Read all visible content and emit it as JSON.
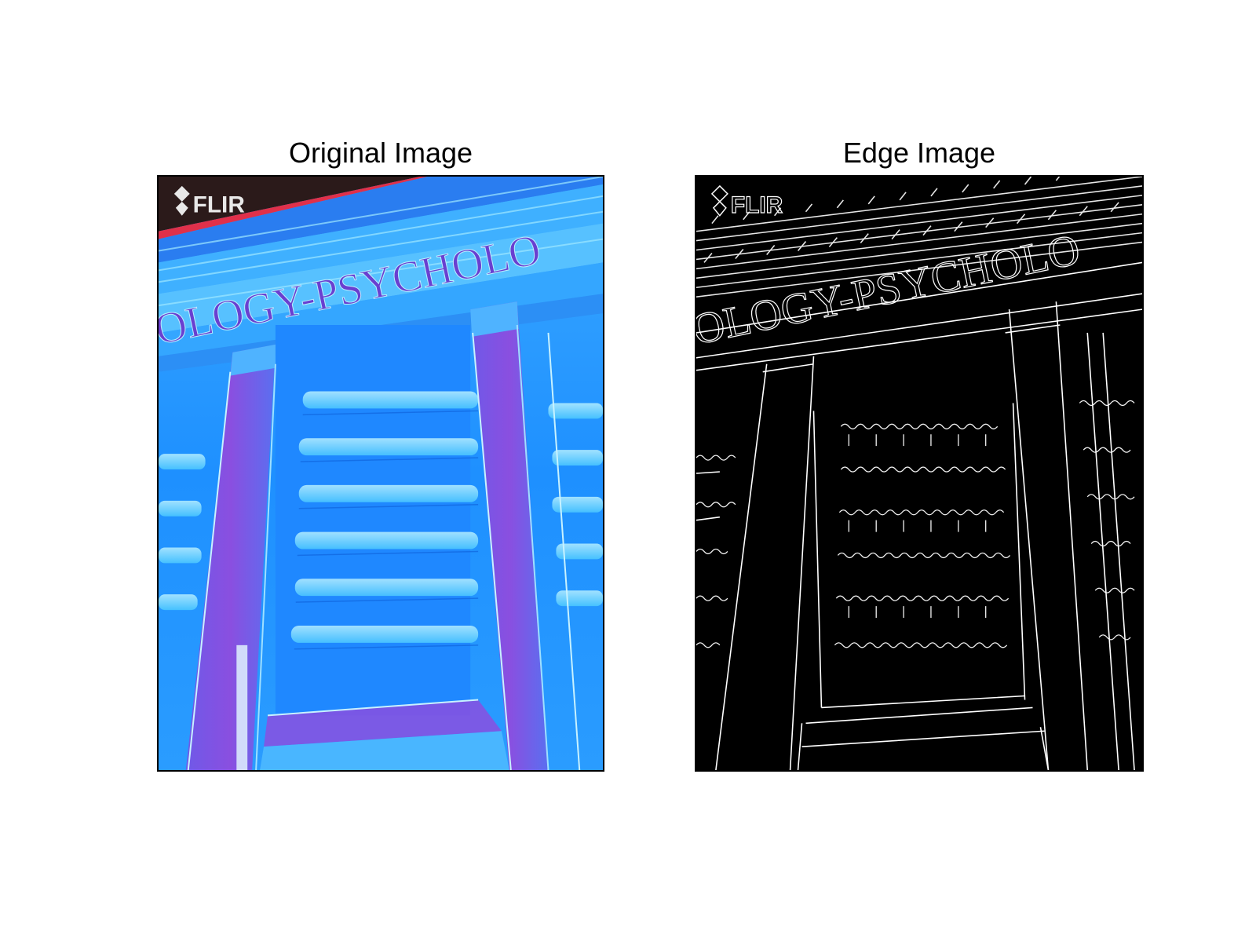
{
  "panels": [
    {
      "title": "Original Image",
      "image": "thermal-building-facade",
      "watermark": "FLIR",
      "facade_lettering": "OLOGY-PSYCHOLO",
      "colors": {
        "background": "#1e90ff",
        "highlight": "#4cc9ff",
        "pillar": "#8a4fe0",
        "roof": "#2b1a1a",
        "roof_edge": "#e0304a"
      }
    },
    {
      "title": "Edge Image",
      "image": "edge-map-building-facade",
      "watermark": "FLIR",
      "facade_lettering": "OLOGY-PSYCHOLO",
      "colors": {
        "background": "#000000",
        "edges": "#ffffff"
      }
    }
  ]
}
